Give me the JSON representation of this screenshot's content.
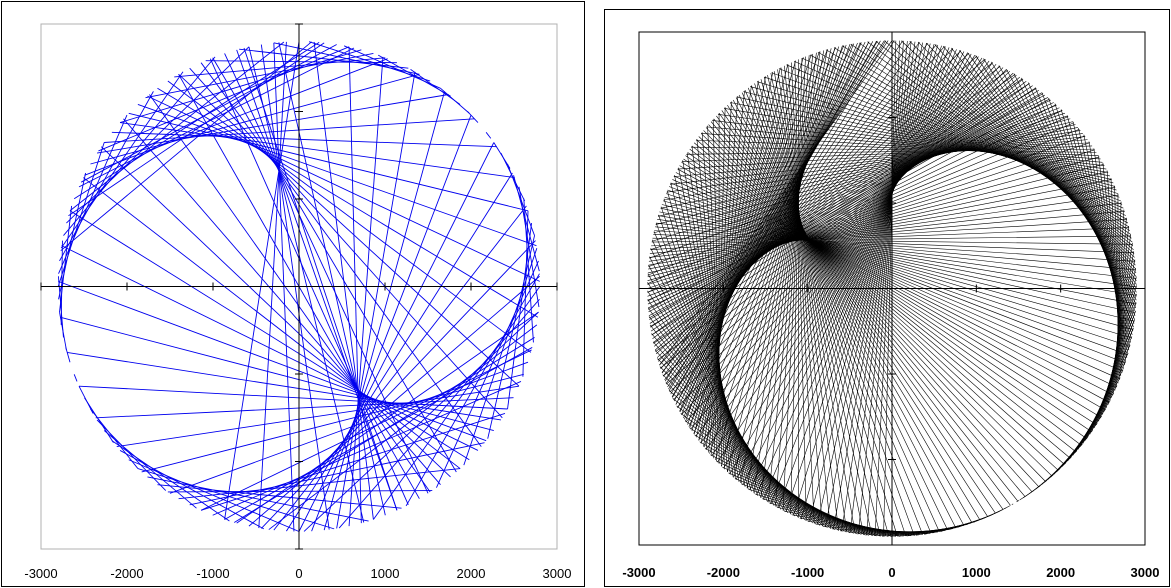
{
  "chart_data": [
    {
      "type": "line",
      "title": "",
      "xlabel": "",
      "ylabel": "",
      "xlim": [
        -3000,
        3000
      ],
      "ylim": [
        -3000,
        3000
      ],
      "x_ticks": [
        "-3000",
        "-2000",
        "-1000",
        "0",
        "1000",
        "2000",
        "3000"
      ],
      "grid": false,
      "line_color": "#0000ee",
      "description_of_data": "chords of a circle of radius 2800 connecting points theta and 2.8*theta",
      "radius": 2800,
      "chord_count": 120,
      "chord_multiplier": 2.8
    },
    {
      "type": "line",
      "title": "",
      "xlabel": "",
      "ylabel": "",
      "xlim": [
        -3000,
        3000
      ],
      "ylim": [
        -3000,
        3000
      ],
      "x_ticks": [
        "-3000",
        "-2000",
        "-1000",
        "0",
        "1000",
        "2000",
        "3000"
      ],
      "grid": false,
      "line_color": "#000000",
      "radius": 2900,
      "chord_count": 400,
      "chord_multiplier": 2.2
    }
  ]
}
